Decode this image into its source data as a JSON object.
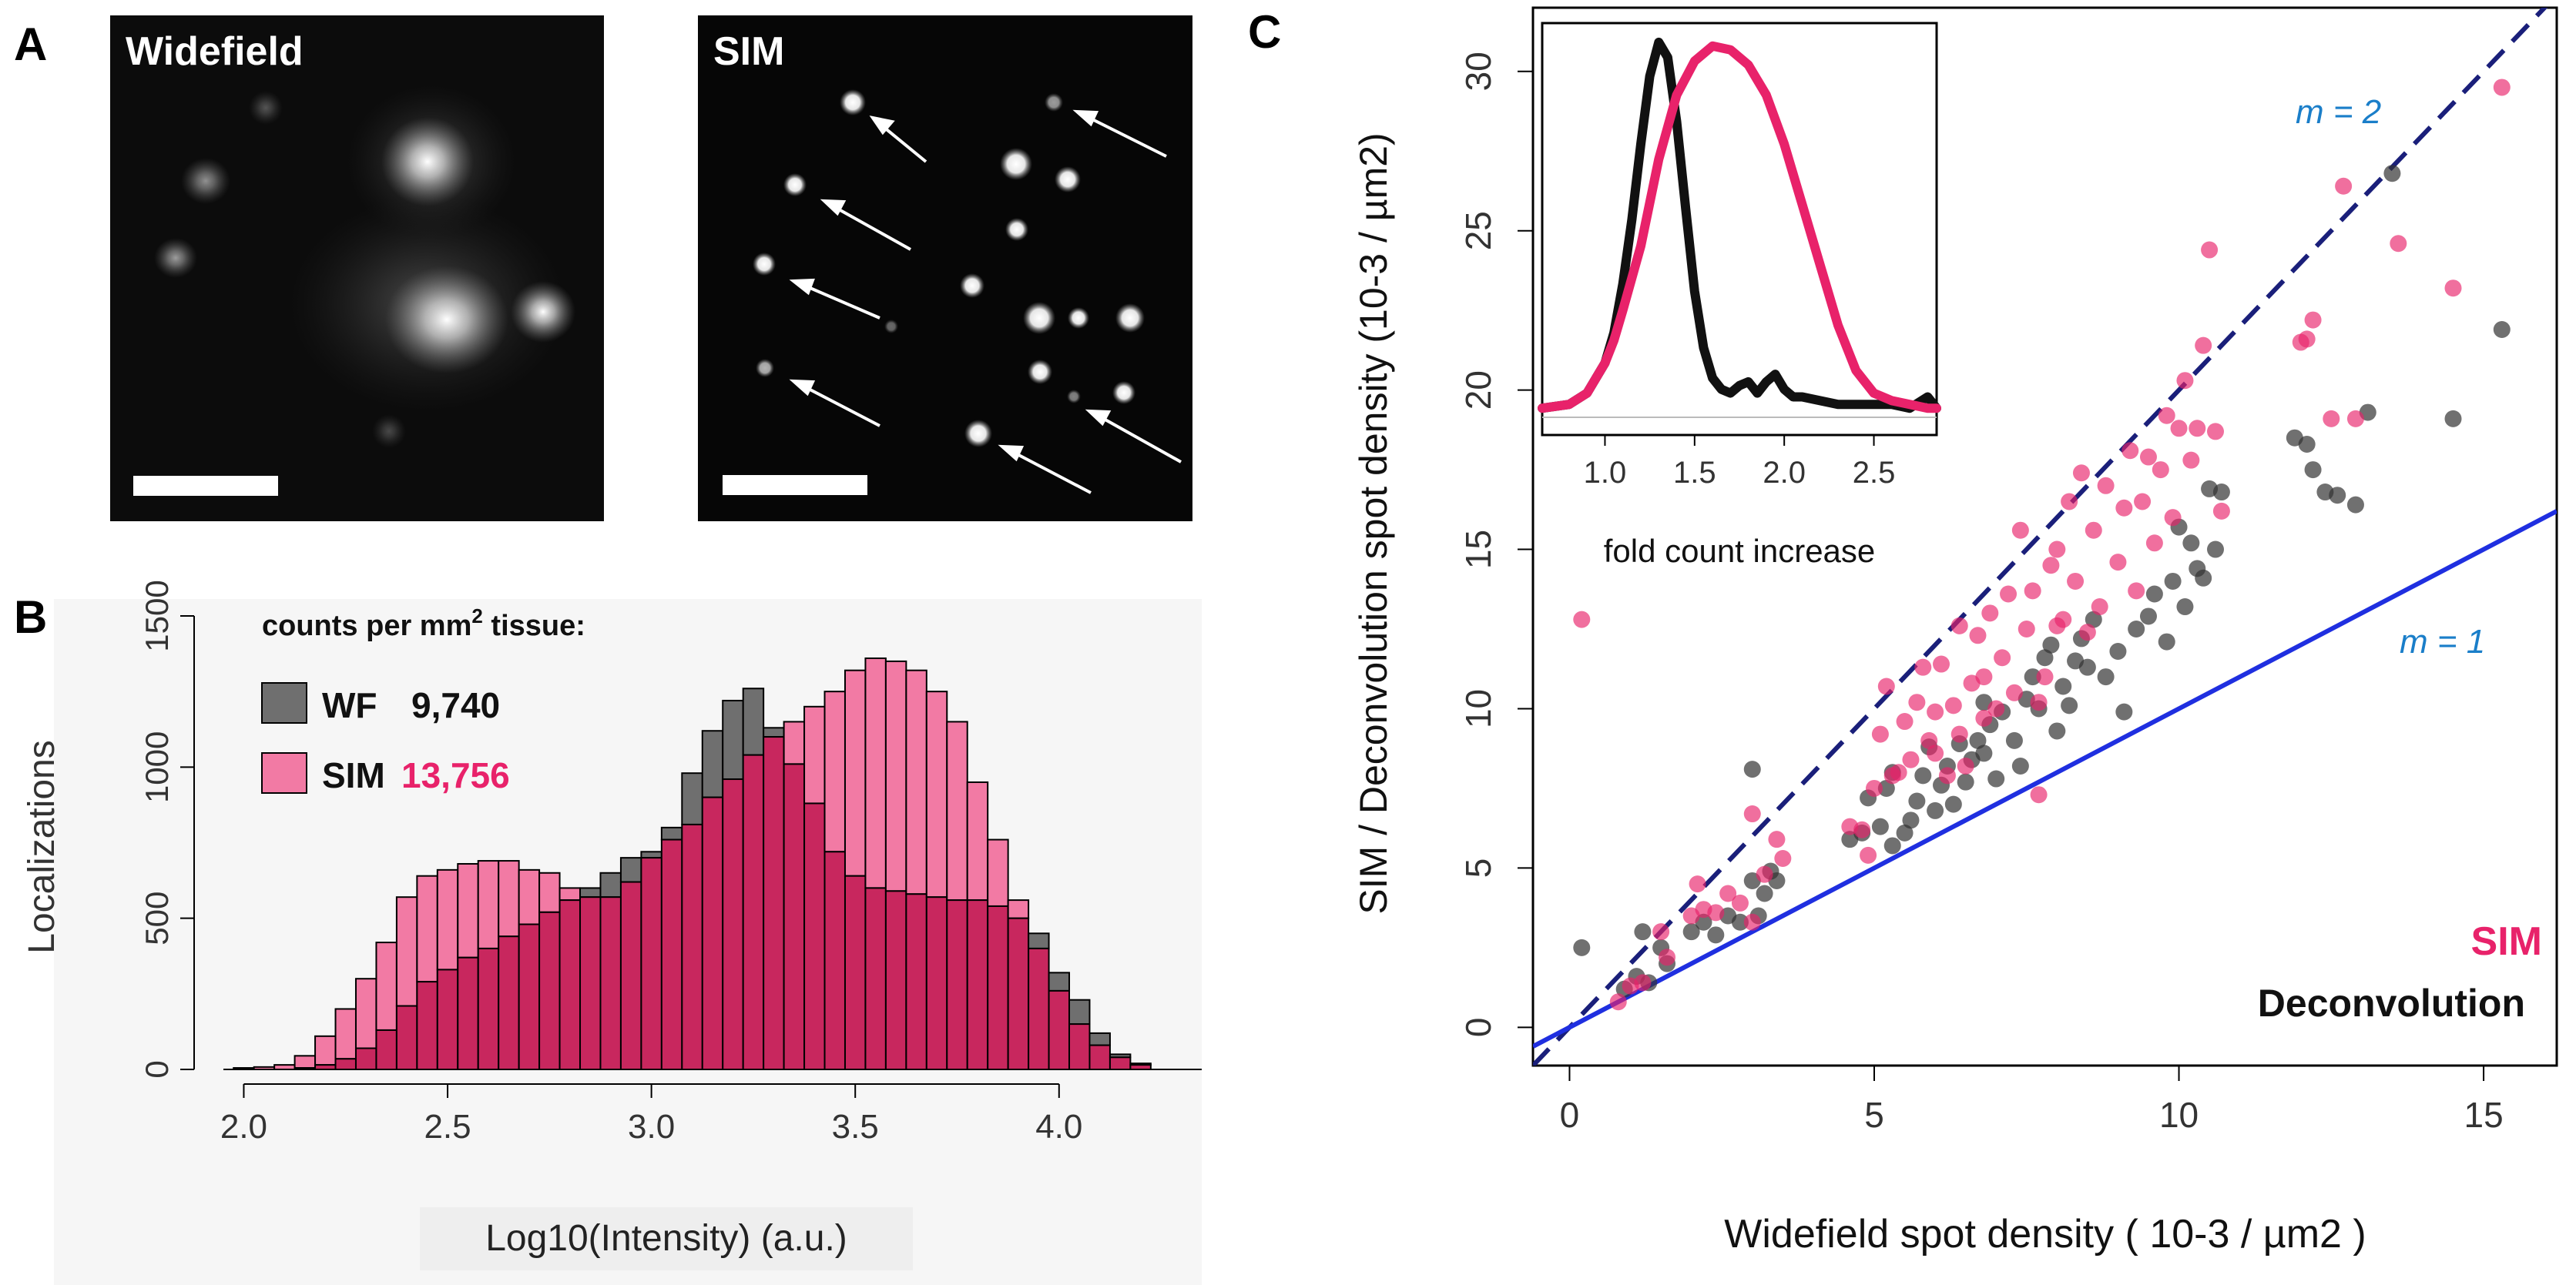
{
  "figure": {
    "panel_a": {
      "letter": "A",
      "left_title": "Widefield",
      "right_title": "SIM"
    },
    "panel_b": {
      "letter": "B",
      "counts_title": "counts per mm",
      "counts_superscript": "2",
      "counts_title_suffix": " tissue:",
      "wf_label": "WF",
      "wf_count": "9,740",
      "sim_label": "SIM",
      "sim_count": "13,756"
    },
    "panel_c": {
      "letter": "C",
      "slope2_label": "m = 2",
      "slope1_label": "m = 1",
      "legend_sim": "SIM",
      "legend_deconvolution": "Deconvolution"
    }
  },
  "colors": {
    "sim_pink": "#e8226a",
    "sim_pink_light": "#f27aa4",
    "overlap_red": "#c8275e",
    "wf_gray": "#6f6f6f",
    "line_blue": "#1f2fe0",
    "dashed_navy": "#1a1f7a",
    "label_blue": "#1a7ec9"
  },
  "chart_data": [
    {
      "type": "bar",
      "title": "counts per mm2 tissue",
      "xlabel": "Log10(Intensity) (a.u.)",
      "ylabel": "Localizations",
      "xlim": [
        1.95,
        4.35
      ],
      "ylim": [
        0,
        1500
      ],
      "xticks": [
        "2.0",
        "2.5",
        "3.0",
        "3.5",
        "4.0"
      ],
      "yticks": [
        "0",
        "500",
        "1000",
        "1500"
      ],
      "bin_start": 1.975,
      "bin_width": 0.05,
      "series": [
        {
          "name": "SIM",
          "count": "13,756",
          "values": [
            5,
            8,
            15,
            45,
            110,
            200,
            300,
            420,
            570,
            640,
            660,
            680,
            690,
            690,
            660,
            650,
            600,
            570,
            570,
            620,
            700,
            760,
            810,
            900,
            960,
            1040,
            1100,
            1150,
            1200,
            1250,
            1320,
            1360,
            1350,
            1320,
            1250,
            1150,
            950,
            760,
            560,
            400,
            260,
            150,
            80,
            40,
            15
          ]
        },
        {
          "name": "WF",
          "count": "9,740",
          "values": [
            0,
            0,
            0,
            5,
            15,
            35,
            70,
            130,
            210,
            290,
            330,
            370,
            400,
            440,
            480,
            520,
            560,
            600,
            650,
            700,
            720,
            800,
            980,
            1120,
            1220,
            1260,
            1130,
            1010,
            880,
            720,
            640,
            600,
            590,
            580,
            570,
            560,
            560,
            540,
            500,
            450,
            320,
            230,
            120,
            50,
            20
          ]
        }
      ]
    },
    {
      "type": "scatter",
      "xlabel": "Widefield spot density ( 10-3 / µm2 )",
      "ylabel": "SIM / Deconvolution spot density (10-3 / µm2)",
      "xlim": [
        -0.6,
        16.2
      ],
      "ylim": [
        -1.2,
        32
      ],
      "xticks": [
        "0",
        "5",
        "10",
        "15"
      ],
      "yticks": [
        "0",
        "5",
        "10",
        "15",
        "20",
        "25",
        "30"
      ],
      "lines": [
        {
          "name": "m = 2",
          "slope": 2,
          "intercept": 0,
          "style": "dashed"
        },
        {
          "name": "m = 1",
          "slope": 1,
          "intercept": 0,
          "style": "solid"
        }
      ],
      "series": [
        {
          "name": "SIM",
          "points": [
            [
              0.2,
              12.8
            ],
            [
              0.8,
              0.8
            ],
            [
              1.0,
              1.3
            ],
            [
              1.2,
              1.4
            ],
            [
              1.5,
              3.0
            ],
            [
              1.6,
              2.2
            ],
            [
              2.0,
              3.5
            ],
            [
              2.1,
              4.5
            ],
            [
              2.2,
              3.7
            ],
            [
              2.4,
              3.6
            ],
            [
              2.6,
              4.2
            ],
            [
              2.8,
              3.9
            ],
            [
              3.0,
              3.3
            ],
            [
              3.0,
              6.7
            ],
            [
              3.2,
              4.8
            ],
            [
              3.4,
              5.9
            ],
            [
              3.5,
              5.3
            ],
            [
              4.6,
              6.3
            ],
            [
              4.8,
              6.2
            ],
            [
              4.9,
              5.4
            ],
            [
              5.0,
              7.5
            ],
            [
              5.1,
              9.2
            ],
            [
              5.2,
              10.7
            ],
            [
              5.3,
              7.9
            ],
            [
              5.4,
              8.0
            ],
            [
              5.5,
              9.6
            ],
            [
              5.6,
              8.4
            ],
            [
              5.7,
              10.2
            ],
            [
              5.8,
              11.3
            ],
            [
              5.9,
              9.0
            ],
            [
              6.0,
              8.6
            ],
            [
              6.0,
              9.9
            ],
            [
              6.1,
              11.4
            ],
            [
              6.2,
              7.9
            ],
            [
              6.3,
              10.1
            ],
            [
              6.4,
              9.2
            ],
            [
              6.4,
              12.6
            ],
            [
              6.5,
              8.2
            ],
            [
              6.6,
              10.8
            ],
            [
              6.7,
              12.3
            ],
            [
              6.8,
              9.7
            ],
            [
              6.8,
              11.0
            ],
            [
              6.9,
              13.0
            ],
            [
              7.0,
              10.0
            ],
            [
              7.1,
              11.6
            ],
            [
              7.2,
              13.6
            ],
            [
              7.3,
              10.5
            ],
            [
              7.4,
              15.6
            ],
            [
              7.5,
              12.5
            ],
            [
              7.6,
              13.7
            ],
            [
              7.7,
              7.3
            ],
            [
              7.7,
              10.2
            ],
            [
              7.8,
              11.0
            ],
            [
              7.9,
              14.5
            ],
            [
              8.0,
              12.6
            ],
            [
              8.0,
              15.0
            ],
            [
              8.1,
              12.8
            ],
            [
              8.2,
              16.5
            ],
            [
              8.3,
              14.0
            ],
            [
              8.4,
              17.4
            ],
            [
              8.5,
              12.4
            ],
            [
              8.6,
              15.6
            ],
            [
              8.7,
              13.2
            ],
            [
              8.8,
              17.0
            ],
            [
              9.0,
              14.6
            ],
            [
              9.1,
              16.3
            ],
            [
              9.2,
              18.1
            ],
            [
              9.3,
              13.7
            ],
            [
              9.4,
              16.5
            ],
            [
              9.5,
              17.9
            ],
            [
              9.6,
              15.2
            ],
            [
              9.7,
              17.5
            ],
            [
              9.8,
              19.2
            ],
            [
              9.9,
              16.0
            ],
            [
              10.0,
              18.8
            ],
            [
              10.1,
              20.3
            ],
            [
              10.2,
              17.8
            ],
            [
              10.3,
              18.8
            ],
            [
              10.4,
              21.4
            ],
            [
              10.5,
              24.4
            ],
            [
              10.6,
              18.7
            ],
            [
              10.7,
              16.2
            ],
            [
              12.0,
              21.5
            ],
            [
              12.1,
              21.6
            ],
            [
              12.2,
              22.2
            ],
            [
              12.5,
              19.1
            ],
            [
              12.7,
              26.4
            ],
            [
              12.9,
              19.1
            ],
            [
              13.6,
              24.6
            ],
            [
              14.5,
              23.2
            ],
            [
              15.3,
              29.5
            ]
          ]
        },
        {
          "name": "Deconvolution",
          "points": [
            [
              0.2,
              2.5
            ],
            [
              0.9,
              1.2
            ],
            [
              1.1,
              1.6
            ],
            [
              1.2,
              3.0
            ],
            [
              1.3,
              1.4
            ],
            [
              1.5,
              2.5
            ],
            [
              1.6,
              2.0
            ],
            [
              2.0,
              3.0
            ],
            [
              2.2,
              3.3
            ],
            [
              2.4,
              2.9
            ],
            [
              2.6,
              3.5
            ],
            [
              2.8,
              3.3
            ],
            [
              3.0,
              8.1
            ],
            [
              3.0,
              4.6
            ],
            [
              3.1,
              3.5
            ],
            [
              3.2,
              4.2
            ],
            [
              3.3,
              4.9
            ],
            [
              3.4,
              4.6
            ],
            [
              4.6,
              5.9
            ],
            [
              4.8,
              6.1
            ],
            [
              4.9,
              7.2
            ],
            [
              5.1,
              6.3
            ],
            [
              5.2,
              7.5
            ],
            [
              5.3,
              8.0
            ],
            [
              5.3,
              5.7
            ],
            [
              5.5,
              6.1
            ],
            [
              5.6,
              6.5
            ],
            [
              5.7,
              7.1
            ],
            [
              5.8,
              7.9
            ],
            [
              5.9,
              8.8
            ],
            [
              6.0,
              6.8
            ],
            [
              6.1,
              7.6
            ],
            [
              6.2,
              8.2
            ],
            [
              6.3,
              7.0
            ],
            [
              6.4,
              8.9
            ],
            [
              6.5,
              7.7
            ],
            [
              6.6,
              8.4
            ],
            [
              6.7,
              9.0
            ],
            [
              6.8,
              8.6
            ],
            [
              6.8,
              10.2
            ],
            [
              6.9,
              9.5
            ],
            [
              7.0,
              7.8
            ],
            [
              7.1,
              9.9
            ],
            [
              7.3,
              9.0
            ],
            [
              7.4,
              8.2
            ],
            [
              7.5,
              10.3
            ],
            [
              7.6,
              11.0
            ],
            [
              7.7,
              10.0
            ],
            [
              7.8,
              11.6
            ],
            [
              7.9,
              12.0
            ],
            [
              8.0,
              9.3
            ],
            [
              8.1,
              10.7
            ],
            [
              8.2,
              10.1
            ],
            [
              8.3,
              11.5
            ],
            [
              8.4,
              12.2
            ],
            [
              8.5,
              11.3
            ],
            [
              8.6,
              12.8
            ],
            [
              8.8,
              11.0
            ],
            [
              9.0,
              11.8
            ],
            [
              9.1,
              9.9
            ],
            [
              9.3,
              12.5
            ],
            [
              9.5,
              12.9
            ],
            [
              9.6,
              13.6
            ],
            [
              9.8,
              12.1
            ],
            [
              9.9,
              14.0
            ],
            [
              10.0,
              15.7
            ],
            [
              10.1,
              13.2
            ],
            [
              10.2,
              15.2
            ],
            [
              10.3,
              14.4
            ],
            [
              10.4,
              14.1
            ],
            [
              10.5,
              16.9
            ],
            [
              10.6,
              15.0
            ],
            [
              10.7,
              16.8
            ],
            [
              11.9,
              18.5
            ],
            [
              12.1,
              18.3
            ],
            [
              12.2,
              17.5
            ],
            [
              12.4,
              16.8
            ],
            [
              12.6,
              16.7
            ],
            [
              12.9,
              16.4
            ],
            [
              13.1,
              19.3
            ],
            [
              13.5,
              26.8
            ],
            [
              14.5,
              19.1
            ],
            [
              15.3,
              21.9
            ]
          ]
        }
      ]
    },
    {
      "type": "line",
      "title": "inset",
      "xlabel": "fold count increase",
      "xlim": [
        0.65,
        2.85
      ],
      "ylim": [
        0,
        1
      ],
      "xticks": [
        "1.0",
        "1.5",
        "2.0",
        "2.5"
      ],
      "series": [
        {
          "name": "Deconvolution",
          "x": [
            0.65,
            0.8,
            0.9,
            1.0,
            1.05,
            1.1,
            1.15,
            1.2,
            1.25,
            1.3,
            1.35,
            1.4,
            1.45,
            1.5,
            1.55,
            1.6,
            1.65,
            1.7,
            1.75,
            1.8,
            1.85,
            1.9,
            1.95,
            2.0,
            2.05,
            2.1,
            2.2,
            2.3,
            2.4,
            2.5,
            2.6,
            2.7,
            2.8,
            2.85
          ],
          "y": [
            0.02,
            0.03,
            0.06,
            0.14,
            0.22,
            0.35,
            0.52,
            0.72,
            0.9,
            0.99,
            0.95,
            0.78,
            0.55,
            0.33,
            0.18,
            0.1,
            0.07,
            0.06,
            0.08,
            0.09,
            0.06,
            0.09,
            0.11,
            0.07,
            0.05,
            0.05,
            0.04,
            0.03,
            0.03,
            0.03,
            0.03,
            0.02,
            0.05,
            0.02
          ]
        },
        {
          "name": "SIM",
          "x": [
            0.65,
            0.8,
            0.9,
            1.0,
            1.05,
            1.1,
            1.2,
            1.3,
            1.4,
            1.5,
            1.6,
            1.7,
            1.8,
            1.9,
            2.0,
            2.1,
            2.2,
            2.3,
            2.4,
            2.5,
            2.6,
            2.7,
            2.8,
            2.85
          ],
          "y": [
            0.02,
            0.03,
            0.06,
            0.14,
            0.2,
            0.28,
            0.45,
            0.68,
            0.85,
            0.94,
            0.98,
            0.97,
            0.93,
            0.85,
            0.72,
            0.56,
            0.4,
            0.24,
            0.12,
            0.06,
            0.04,
            0.03,
            0.02,
            0.02
          ]
        }
      ]
    }
  ]
}
